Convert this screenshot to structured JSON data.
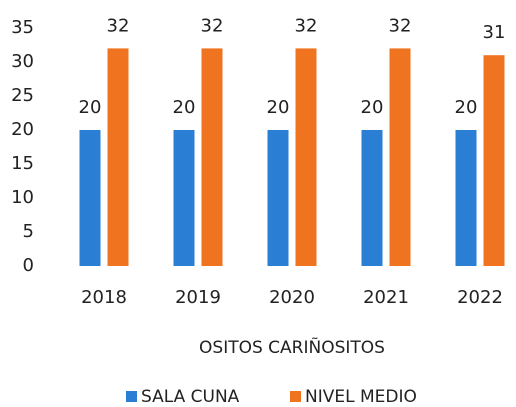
{
  "chart_data": {
    "type": "bar",
    "x_label": "OSITOS CARIÑOSITOS",
    "categories": [
      "2018",
      "2019",
      "2020",
      "2021",
      "2022"
    ],
    "series": [
      {
        "name": "SALA CUNA",
        "color": "#2a7fd4",
        "values": [
          20,
          20,
          20,
          20,
          20
        ]
      },
      {
        "name": "NIVEL MEDIO",
        "color": "#f07320",
        "values": [
          32,
          32,
          32,
          32,
          31
        ]
      }
    ],
    "ylim": [
      0,
      35
    ],
    "yticks": [
      0,
      5,
      10,
      15,
      20,
      25,
      30,
      35
    ],
    "grid": false,
    "legend": "bottom",
    "data_labels": true
  }
}
